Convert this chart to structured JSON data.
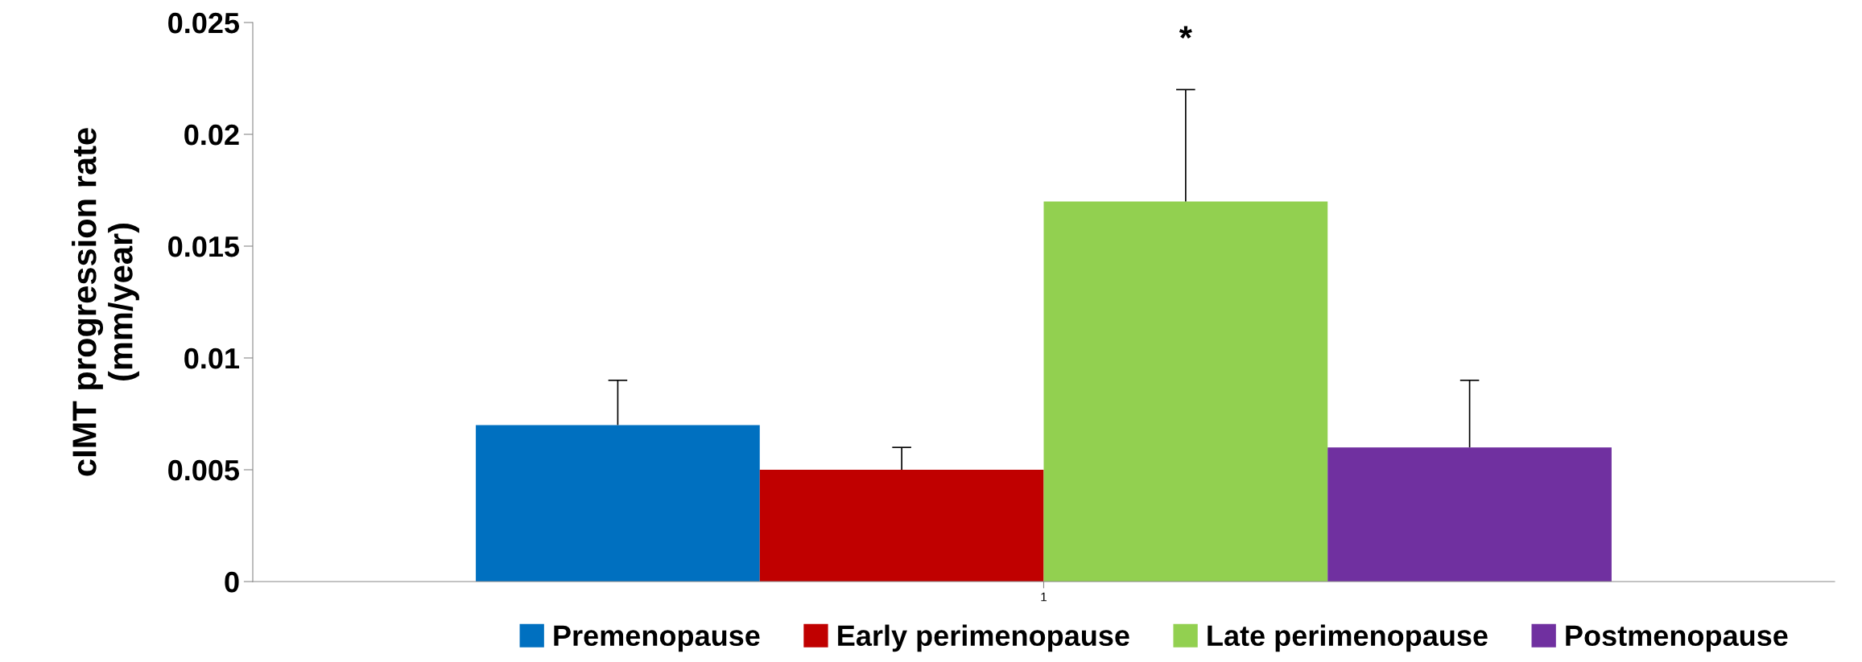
{
  "chart_data": {
    "type": "bar",
    "ylabel": "cIMT progression rate\n(mm/year)",
    "categories": [
      "1"
    ],
    "series": [
      {
        "name": "Premenopause",
        "color": "#0070c0",
        "values": [
          0.007
        ],
        "errors": [
          [
            0.007,
            0.009
          ]
        ]
      },
      {
        "name": "Early perimenopause",
        "color": "#c00000",
        "values": [
          0.005
        ],
        "errors": [
          [
            0.005,
            0.006
          ]
        ]
      },
      {
        "name": "Late perimenopause",
        "color": "#92d050",
        "values": [
          0.017
        ],
        "errors": [
          [
            0.017,
            0.022
          ]
        ]
      },
      {
        "name": "Postmenopause",
        "color": "#7030a0",
        "values": [
          0.006
        ],
        "errors": [
          [
            0.006,
            0.009
          ]
        ]
      }
    ],
    "ylim": [
      0,
      0.025
    ],
    "yticks": [
      0,
      0.005,
      0.01,
      0.015,
      0.02,
      0.025
    ],
    "annotations": [
      "*"
    ],
    "legend": "bottom",
    "grid": false
  }
}
